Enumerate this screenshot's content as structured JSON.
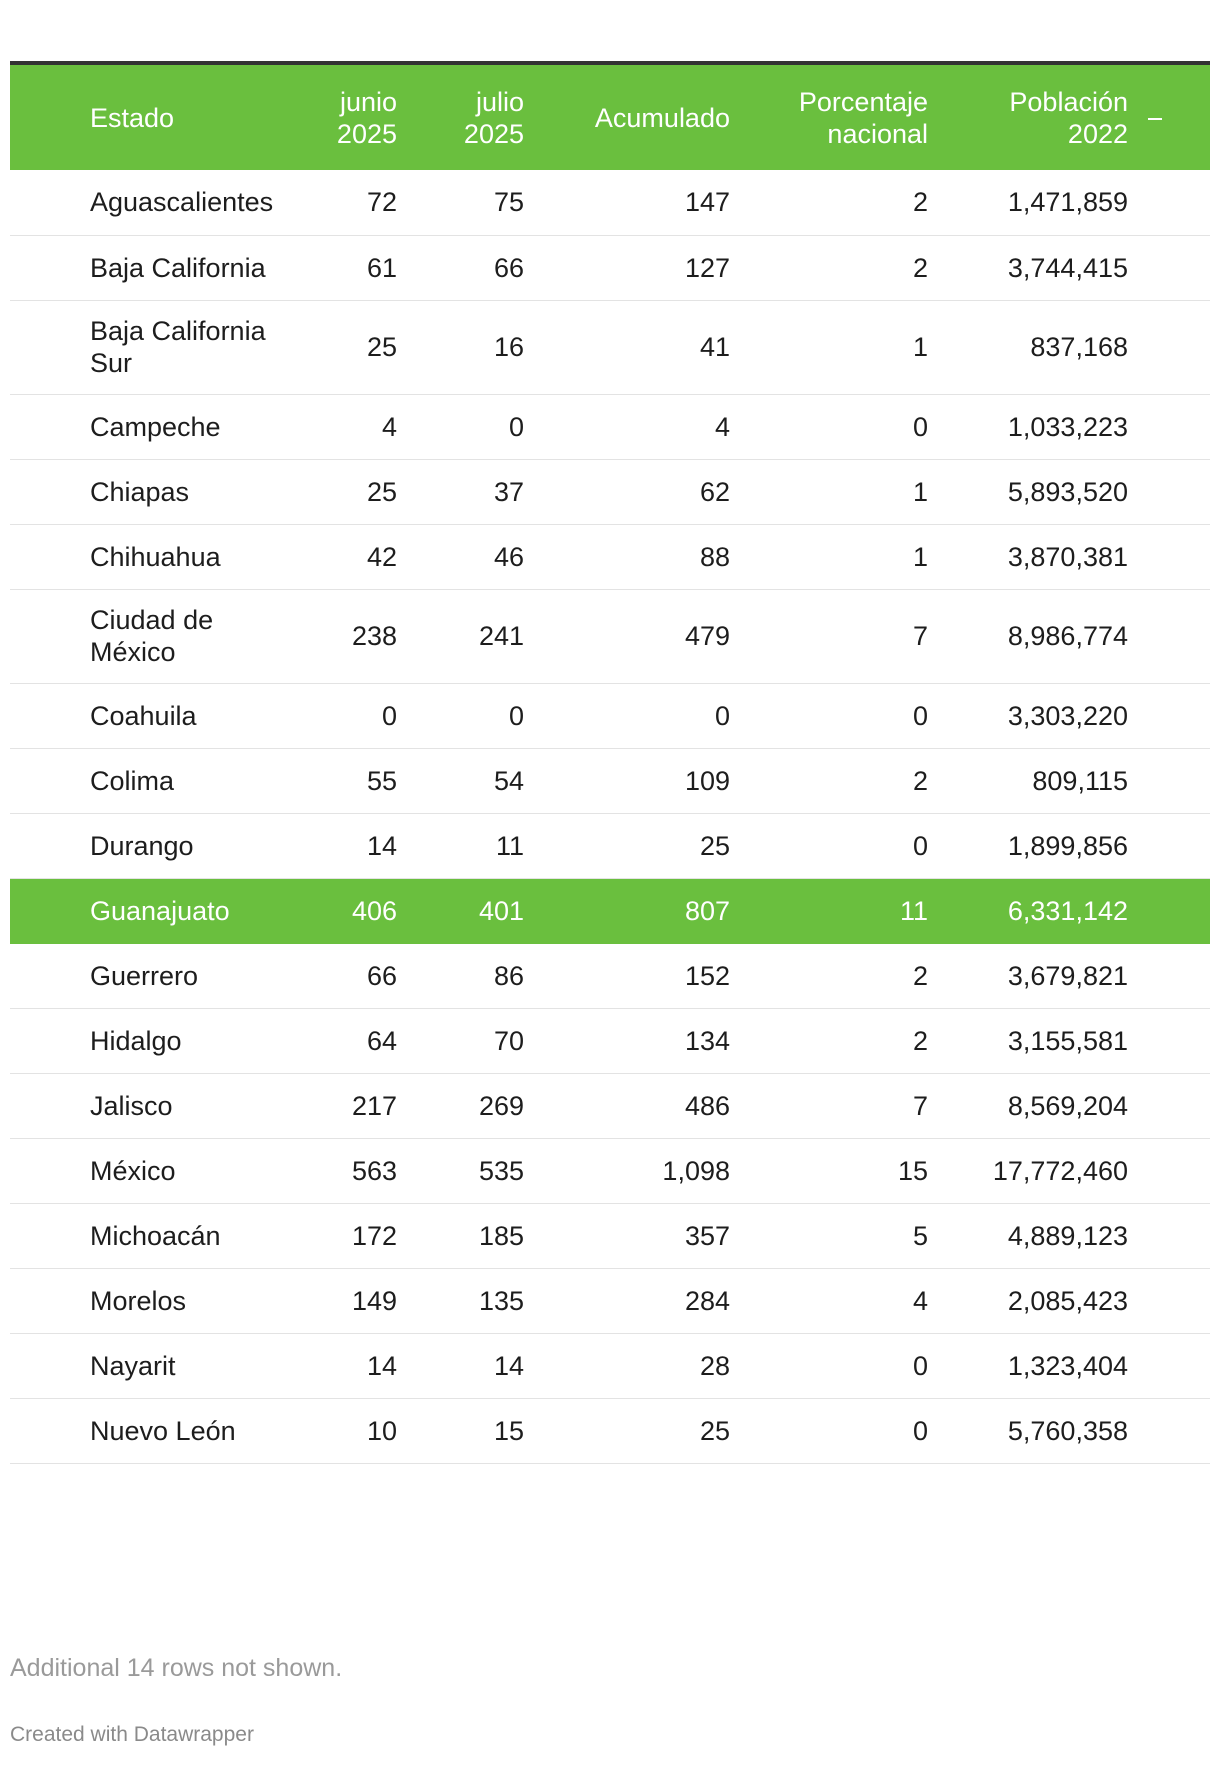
{
  "chart_data": {
    "type": "table",
    "columns": [
      "Estado",
      "junio\n2025",
      "julio\n2025",
      "Acumulado",
      "Porcentaje\nnacional",
      "Población\n2022"
    ],
    "rows": [
      [
        "Aguascalientes",
        "72",
        "75",
        "147",
        "2",
        "1,471,859"
      ],
      [
        "Baja California",
        "61",
        "66",
        "127",
        "2",
        "3,744,415"
      ],
      [
        "Baja California Sur",
        "25",
        "16",
        "41",
        "1",
        "837,168"
      ],
      [
        "Campeche",
        "4",
        "0",
        "4",
        "0",
        "1,033,223"
      ],
      [
        "Chiapas",
        "25",
        "37",
        "62",
        "1",
        "5,893,520"
      ],
      [
        "Chihuahua",
        "42",
        "46",
        "88",
        "1",
        "3,870,381"
      ],
      [
        "Ciudad de México",
        "238",
        "241",
        "479",
        "7",
        "8,986,774"
      ],
      [
        "Coahuila",
        "0",
        "0",
        "0",
        "0",
        "3,303,220"
      ],
      [
        "Colima",
        "55",
        "54",
        "109",
        "2",
        "809,115"
      ],
      [
        "Durango",
        "14",
        "11",
        "25",
        "0",
        "1,899,856"
      ],
      [
        "Guanajuato",
        "406",
        "401",
        "807",
        "11",
        "6,331,142"
      ],
      [
        "Guerrero",
        "66",
        "86",
        "152",
        "2",
        "3,679,821"
      ],
      [
        "Hidalgo",
        "64",
        "70",
        "134",
        "2",
        "3,155,581"
      ],
      [
        "Jalisco",
        "217",
        "269",
        "486",
        "7",
        "8,569,204"
      ],
      [
        "México",
        "563",
        "535",
        "1,098",
        "15",
        "17,772,460"
      ],
      [
        "Michoacán",
        "172",
        "185",
        "357",
        "5",
        "4,889,123"
      ],
      [
        "Morelos",
        "149",
        "135",
        "284",
        "4",
        "2,085,423"
      ],
      [
        "Nayarit",
        "14",
        "14",
        "28",
        "0",
        "1,323,404"
      ],
      [
        "Nuevo León",
        "10",
        "15",
        "25",
        "0",
        "5,760,358"
      ]
    ],
    "highlighted_row": "Guanajuato",
    "highlight_color": "#6abf3e",
    "header_color": "#6abf3e",
    "notes": "Additional 14 rows not shown.",
    "credit": "Created with Datawrapper"
  }
}
